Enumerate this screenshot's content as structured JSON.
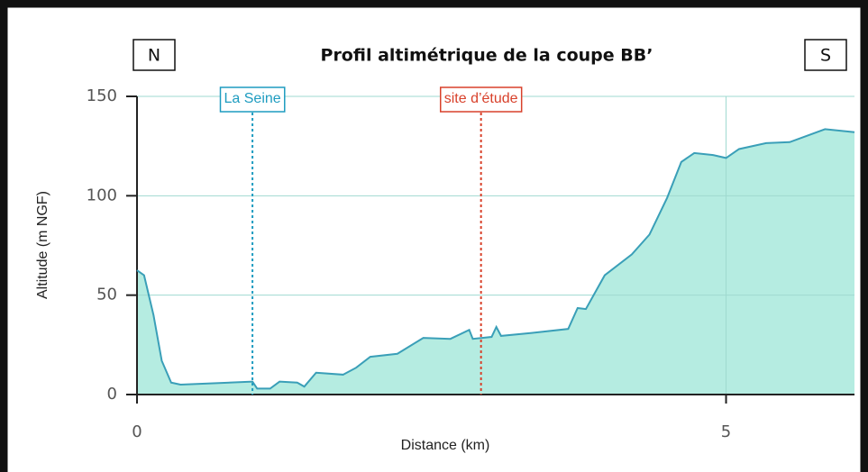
{
  "chart_data": {
    "type": "area",
    "title": "Profil altimétrique de la coupe BB’",
    "corner_labels": [
      "N",
      "S"
    ],
    "xlabel": "Distance (km)",
    "ylabel": "Altitude (m NGF)",
    "x": [
      0,
      0.06,
      0.14,
      0.21,
      0.29,
      0.37,
      0.98,
      1.02,
      1.13,
      1.21,
      1.36,
      1.42,
      1.52,
      1.75,
      1.86,
      1.98,
      2.21,
      2.43,
      2.66,
      2.82,
      2.85,
      3.01,
      3.05,
      3.09,
      3.35,
      3.66,
      3.74,
      3.81,
      3.97,
      4.2,
      4.35,
      4.5,
      4.62,
      4.73,
      4.89,
      5.0,
      5.11,
      5.34,
      5.54,
      5.84,
      6.09
    ],
    "series": [
      {
        "name": "Altitude",
        "color": "#3a9fb8",
        "fill": "#b5ece1",
        "values": [
          62.5,
          60,
          40,
          17,
          6,
          5,
          6.5,
          3,
          3,
          6.5,
          6,
          4,
          11,
          10,
          13.5,
          19,
          20.5,
          28.5,
          28,
          32.5,
          28,
          29,
          34,
          29.5,
          31,
          33,
          43.5,
          43,
          60,
          70.5,
          80.5,
          99,
          117,
          121.5,
          120.5,
          119,
          123.5,
          126.5,
          127,
          133.5,
          132
        ]
      }
    ],
    "annotations": [
      {
        "text": "La Seine",
        "x": 0.98,
        "color": "#1e9cc0"
      },
      {
        "text": "site d’étude",
        "x": 2.92,
        "color": "#d8412b"
      }
    ],
    "xlim": [
      0,
      6.09
    ],
    "ylim": [
      0,
      150
    ],
    "xticks": [
      0,
      5
    ],
    "yticks": [
      0,
      50,
      100,
      150
    ],
    "grid": true
  }
}
